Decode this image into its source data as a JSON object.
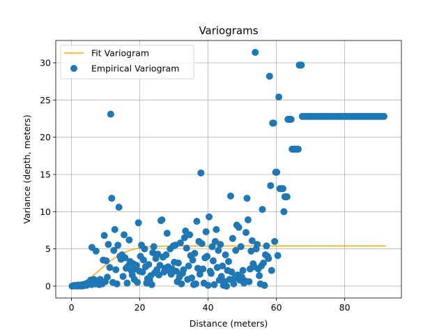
{
  "chart_data": {
    "type": "scatter",
    "title": "Variograms",
    "xlabel": "Distance (meters)",
    "ylabel": "Variance (depth, meters)",
    "xlim": [
      -4.6,
      96.6
    ],
    "ylim": [
      -1.6,
      33.0
    ],
    "xticks": [
      0,
      20,
      40,
      60,
      80
    ],
    "yticks": [
      0,
      5,
      10,
      15,
      20,
      25,
      30
    ],
    "grid": true,
    "legend_position": "top-left",
    "series": [
      {
        "name": "Fit Variogram",
        "kind": "line",
        "color": "#ffa500",
        "model": {
          "nugget": 0.0,
          "sill": 5.4,
          "range": 20.0,
          "x_start": 0,
          "x_end": 92
        }
      },
      {
        "name": "Empirical Variogram",
        "kind": "scatter",
        "color": "#1f77b4",
        "points": [
          [
            0.2,
            0.0
          ],
          [
            0.5,
            0.05
          ],
          [
            0.8,
            0.02
          ],
          [
            1.1,
            0.1
          ],
          [
            1.4,
            0.03
          ],
          [
            1.8,
            0.0
          ],
          [
            2.0,
            0.15
          ],
          [
            2.3,
            0.05
          ],
          [
            2.6,
            0.1
          ],
          [
            2.9,
            0.0
          ],
          [
            3.2,
            0.2
          ],
          [
            3.5,
            0.05
          ],
          [
            3.8,
            0.1
          ],
          [
            4.1,
            0.3
          ],
          [
            4.4,
            0.1
          ],
          [
            4.7,
            0.2
          ],
          [
            5.0,
            0.5
          ],
          [
            5.3,
            0.3
          ],
          [
            5.6,
            0.8
          ],
          [
            5.9,
            0.2
          ],
          [
            6.0,
            5.2
          ],
          [
            6.3,
            0.6
          ],
          [
            6.6,
            0.9
          ],
          [
            6.9,
            0.3
          ],
          [
            7.2,
            4.7
          ],
          [
            7.5,
            0.4
          ],
          [
            7.8,
            0.7
          ],
          [
            8.1,
            0.2
          ],
          [
            8.4,
            0.9
          ],
          [
            8.7,
            0.5
          ],
          [
            9.0,
            0.3
          ],
          [
            9.3,
            3.5
          ],
          [
            9.6,
            6.8
          ],
          [
            9.9,
            0.6
          ],
          [
            10.2,
            3.4
          ],
          [
            10.5,
            1.2
          ],
          [
            10.8,
            5.6
          ],
          [
            11.2,
            2.5
          ],
          [
            11.5,
            23.1
          ],
          [
            11.8,
            11.8
          ],
          [
            12.1,
            0.5
          ],
          [
            12.4,
            4.8
          ],
          [
            12.7,
            7.6
          ],
          [
            13.0,
            2.2
          ],
          [
            13.3,
            0.3
          ],
          [
            13.6,
            5.5
          ],
          [
            13.9,
            10.6
          ],
          [
            14.2,
            4.0
          ],
          [
            14.5,
            3.6
          ],
          [
            14.8,
            4.2
          ],
          [
            15.1,
            1.3
          ],
          [
            15.4,
            6.9
          ],
          [
            15.7,
            3.8
          ],
          [
            16.0,
            2.4
          ],
          [
            16.3,
            0.4
          ],
          [
            16.6,
            2.7
          ],
          [
            16.9,
            6.2
          ],
          [
            17.2,
            3.3
          ],
          [
            17.5,
            2.1
          ],
          [
            17.8,
            1.5
          ],
          [
            18.1,
            3.0
          ],
          [
            18.4,
            0.9
          ],
          [
            18.7,
            2.3
          ],
          [
            19.0,
            2.8
          ],
          [
            19.3,
            0.5
          ],
          [
            19.6,
            8.5
          ],
          [
            19.9,
            2.0
          ],
          [
            20.2,
            4.0
          ],
          [
            20.5,
            5.5
          ],
          [
            20.8,
            1.9
          ],
          [
            21.1,
            3.5
          ],
          [
            21.4,
            5.0
          ],
          [
            21.7,
            2.6
          ],
          [
            22.0,
            0.4
          ],
          [
            22.3,
            1.0
          ],
          [
            22.6,
            2.9
          ],
          [
            22.9,
            0.8
          ],
          [
            23.2,
            1.4
          ],
          [
            23.5,
            0.2
          ],
          [
            23.8,
            4.5
          ],
          [
            24.1,
            5.3
          ],
          [
            24.4,
            1.8
          ],
          [
            24.7,
            3.7
          ],
          [
            25.0,
            2.2
          ],
          [
            25.3,
            4.3
          ],
          [
            25.6,
            1.5
          ],
          [
            25.9,
            2.8
          ],
          [
            26.2,
            8.8
          ],
          [
            26.5,
            8.9
          ],
          [
            26.8,
            3.9
          ],
          [
            27.1,
            1.9
          ],
          [
            27.4,
            2.4
          ],
          [
            27.7,
            4.2
          ],
          [
            28.0,
            7.1
          ],
          [
            28.3,
            2.6
          ],
          [
            28.6,
            2.1
          ],
          [
            28.9,
            5.0
          ],
          [
            29.2,
            1.6
          ],
          [
            29.5,
            2.3
          ],
          [
            29.8,
            5.4
          ],
          [
            30.1,
            3.2
          ],
          [
            30.4,
            5.5
          ],
          [
            30.7,
            2.0
          ],
          [
            31.0,
            0.6
          ],
          [
            31.3,
            3.1
          ],
          [
            31.6,
            1.2
          ],
          [
            31.9,
            5.8
          ],
          [
            32.2,
            0.3
          ],
          [
            32.5,
            1.7
          ],
          [
            32.8,
            2.2
          ],
          [
            33.1,
            6.5
          ],
          [
            33.4,
            7.4
          ],
          [
            33.7,
            5.1
          ],
          [
            34.0,
            0.9
          ],
          [
            34.3,
            2.7
          ],
          [
            34.6,
            6.9
          ],
          [
            34.9,
            4.1
          ],
          [
            35.2,
            1.1
          ],
          [
            35.5,
            3.5
          ],
          [
            35.8,
            0.2
          ],
          [
            36.1,
            4.4
          ],
          [
            36.4,
            0.3
          ],
          [
            36.7,
            8.7
          ],
          [
            37.0,
            2.4
          ],
          [
            37.3,
            6.0
          ],
          [
            37.6,
            1.6
          ],
          [
            37.9,
            15.2
          ],
          [
            38.2,
            5.7
          ],
          [
            38.5,
            2.3
          ],
          [
            38.8,
            0.4
          ],
          [
            39.1,
            3.8
          ],
          [
            39.4,
            7.3
          ],
          [
            39.7,
            4.0
          ],
          [
            40.0,
            0.1
          ],
          [
            40.3,
            9.3
          ],
          [
            40.6,
            2.0
          ],
          [
            40.9,
            1.7
          ],
          [
            41.2,
            5.3
          ],
          [
            41.5,
            3.4
          ],
          [
            41.8,
            0.2
          ],
          [
            42.1,
            6.0
          ],
          [
            42.4,
            7.6
          ],
          [
            42.7,
            2.5
          ],
          [
            43.0,
            4.8
          ],
          [
            43.3,
            0.8
          ],
          [
            43.6,
            5.6
          ],
          [
            43.9,
            1.3
          ],
          [
            44.2,
            2.7
          ],
          [
            44.5,
            0.1
          ],
          [
            44.8,
            0.6
          ],
          [
            45.1,
            4.2
          ],
          [
            45.4,
            0.0
          ],
          [
            45.7,
            2.1
          ],
          [
            46.0,
            3.3
          ],
          [
            46.3,
            0.9
          ],
          [
            46.6,
            12.1
          ],
          [
            46.9,
            1.9
          ],
          [
            47.2,
            6.4
          ],
          [
            47.5,
            0.3
          ],
          [
            47.8,
            1.1
          ],
          [
            48.1,
            4.8
          ],
          [
            48.4,
            8.2
          ],
          [
            48.7,
            1.5
          ],
          [
            49.0,
            7.9
          ],
          [
            49.3,
            0.8
          ],
          [
            49.6,
            5.3
          ],
          [
            49.9,
            1.2
          ],
          [
            50.2,
            2.1
          ],
          [
            50.5,
            0.4
          ],
          [
            50.8,
            0.7
          ],
          [
            51.1,
            7.2
          ],
          [
            51.4,
            11.8
          ],
          [
            51.7,
            8.9
          ],
          [
            52.0,
            0.6
          ],
          [
            52.3,
            2.3
          ],
          [
            52.6,
            4.7
          ],
          [
            52.9,
            6.1
          ],
          [
            53.2,
            3.0
          ],
          [
            53.5,
            2.6
          ],
          [
            53.8,
            31.4
          ],
          [
            54.1,
            5.0
          ],
          [
            54.4,
            5.6
          ],
          [
            54.7,
            2.3
          ],
          [
            55.0,
            1.4
          ],
          [
            55.3,
            0.3
          ],
          [
            55.6,
            2.7
          ],
          [
            55.9,
            10.3
          ],
          [
            56.2,
            3.1
          ],
          [
            56.5,
            0.1
          ],
          [
            56.8,
            4.2
          ],
          [
            57.1,
            5.4
          ],
          [
            57.4,
            4.0
          ],
          [
            57.7,
            3.7
          ],
          [
            58.0,
            28.2
          ],
          [
            58.3,
            13.5
          ],
          [
            58.6,
            2.1
          ],
          [
            58.9,
            21.9
          ],
          [
            59.2,
            21.9
          ],
          [
            59.5,
            6.0
          ],
          [
            59.8,
            15.3
          ],
          [
            60.1,
            15.3
          ],
          [
            60.4,
            4.1
          ],
          [
            60.7,
            25.4
          ],
          [
            61.0,
            13.1
          ],
          [
            61.3,
            13.1
          ],
          [
            61.6,
            13.1
          ],
          [
            61.9,
            13.1
          ],
          [
            62.2,
            10.0
          ],
          [
            62.5,
            12.0
          ],
          [
            62.8,
            12.0
          ],
          [
            63.1,
            12.0
          ],
          [
            63.4,
            22.4
          ],
          [
            63.7,
            22.4
          ],
          [
            64.0,
            22.4
          ],
          [
            64.3,
            22.4
          ],
          [
            64.6,
            18.4
          ],
          [
            64.9,
            18.4
          ],
          [
            65.2,
            18.4
          ],
          [
            65.5,
            18.4
          ],
          [
            65.8,
            18.4
          ],
          [
            66.1,
            18.4
          ],
          [
            66.4,
            18.4
          ],
          [
            66.7,
            29.7
          ],
          [
            67.0,
            29.7
          ],
          [
            67.3,
            29.7
          ],
          [
            67.6,
            22.8
          ],
          [
            68.0,
            22.8
          ],
          [
            68.5,
            22.8
          ],
          [
            69.0,
            22.8
          ],
          [
            69.5,
            22.8
          ],
          [
            70.0,
            22.8
          ],
          [
            70.5,
            22.8
          ],
          [
            71.0,
            22.8
          ],
          [
            71.5,
            22.8
          ],
          [
            72.0,
            22.8
          ],
          [
            72.5,
            22.8
          ],
          [
            73.0,
            22.8
          ],
          [
            73.5,
            22.8
          ],
          [
            74.0,
            22.8
          ],
          [
            74.5,
            22.8
          ],
          [
            75.0,
            22.8
          ],
          [
            75.5,
            22.8
          ],
          [
            76.0,
            22.8
          ],
          [
            76.5,
            22.8
          ],
          [
            77.0,
            22.8
          ],
          [
            77.5,
            22.8
          ],
          [
            78.0,
            22.8
          ],
          [
            78.5,
            22.8
          ],
          [
            79.0,
            22.8
          ],
          [
            79.5,
            22.8
          ],
          [
            80.0,
            22.8
          ],
          [
            80.5,
            22.8
          ],
          [
            81.0,
            22.8
          ],
          [
            81.5,
            22.8
          ],
          [
            82.0,
            22.8
          ],
          [
            82.5,
            22.8
          ],
          [
            83.0,
            22.8
          ],
          [
            83.5,
            22.8
          ],
          [
            84.0,
            22.8
          ],
          [
            84.5,
            22.8
          ],
          [
            85.0,
            22.8
          ],
          [
            85.5,
            22.8
          ],
          [
            86.0,
            22.8
          ],
          [
            86.5,
            22.8
          ],
          [
            87.0,
            22.8
          ],
          [
            87.5,
            22.8
          ],
          [
            88.0,
            22.8
          ],
          [
            88.5,
            22.8
          ],
          [
            89.0,
            22.8
          ],
          [
            89.5,
            22.8
          ],
          [
            90.0,
            22.8
          ],
          [
            90.5,
            22.8
          ],
          [
            91.0,
            22.8
          ],
          [
            91.5,
            22.8
          ]
        ]
      }
    ]
  }
}
